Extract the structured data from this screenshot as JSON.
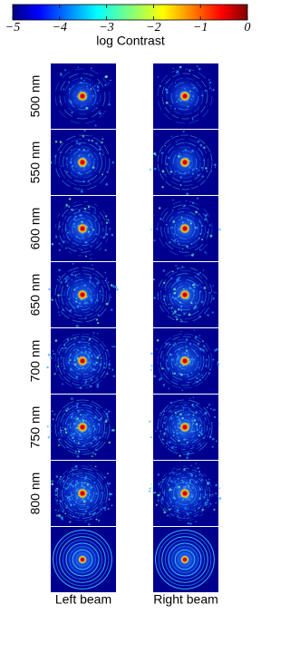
{
  "colorbar": {
    "label": "log Contrast",
    "lim": [
      -5,
      0
    ],
    "ticks": [
      {
        "value": -5,
        "label": "−5"
      },
      {
        "value": -4,
        "label": "−4"
      },
      {
        "value": -3,
        "label": "−3"
      },
      {
        "value": -2,
        "label": "−2"
      },
      {
        "value": -1,
        "label": "−1"
      },
      0
    ]
  },
  "rows": [
    "500 nm",
    "550 nm",
    "600 nm",
    "650 nm",
    "700 nm",
    "750 nm",
    "800 nm",
    null
  ],
  "columns": [
    "Left beam",
    "Right beam"
  ]
}
